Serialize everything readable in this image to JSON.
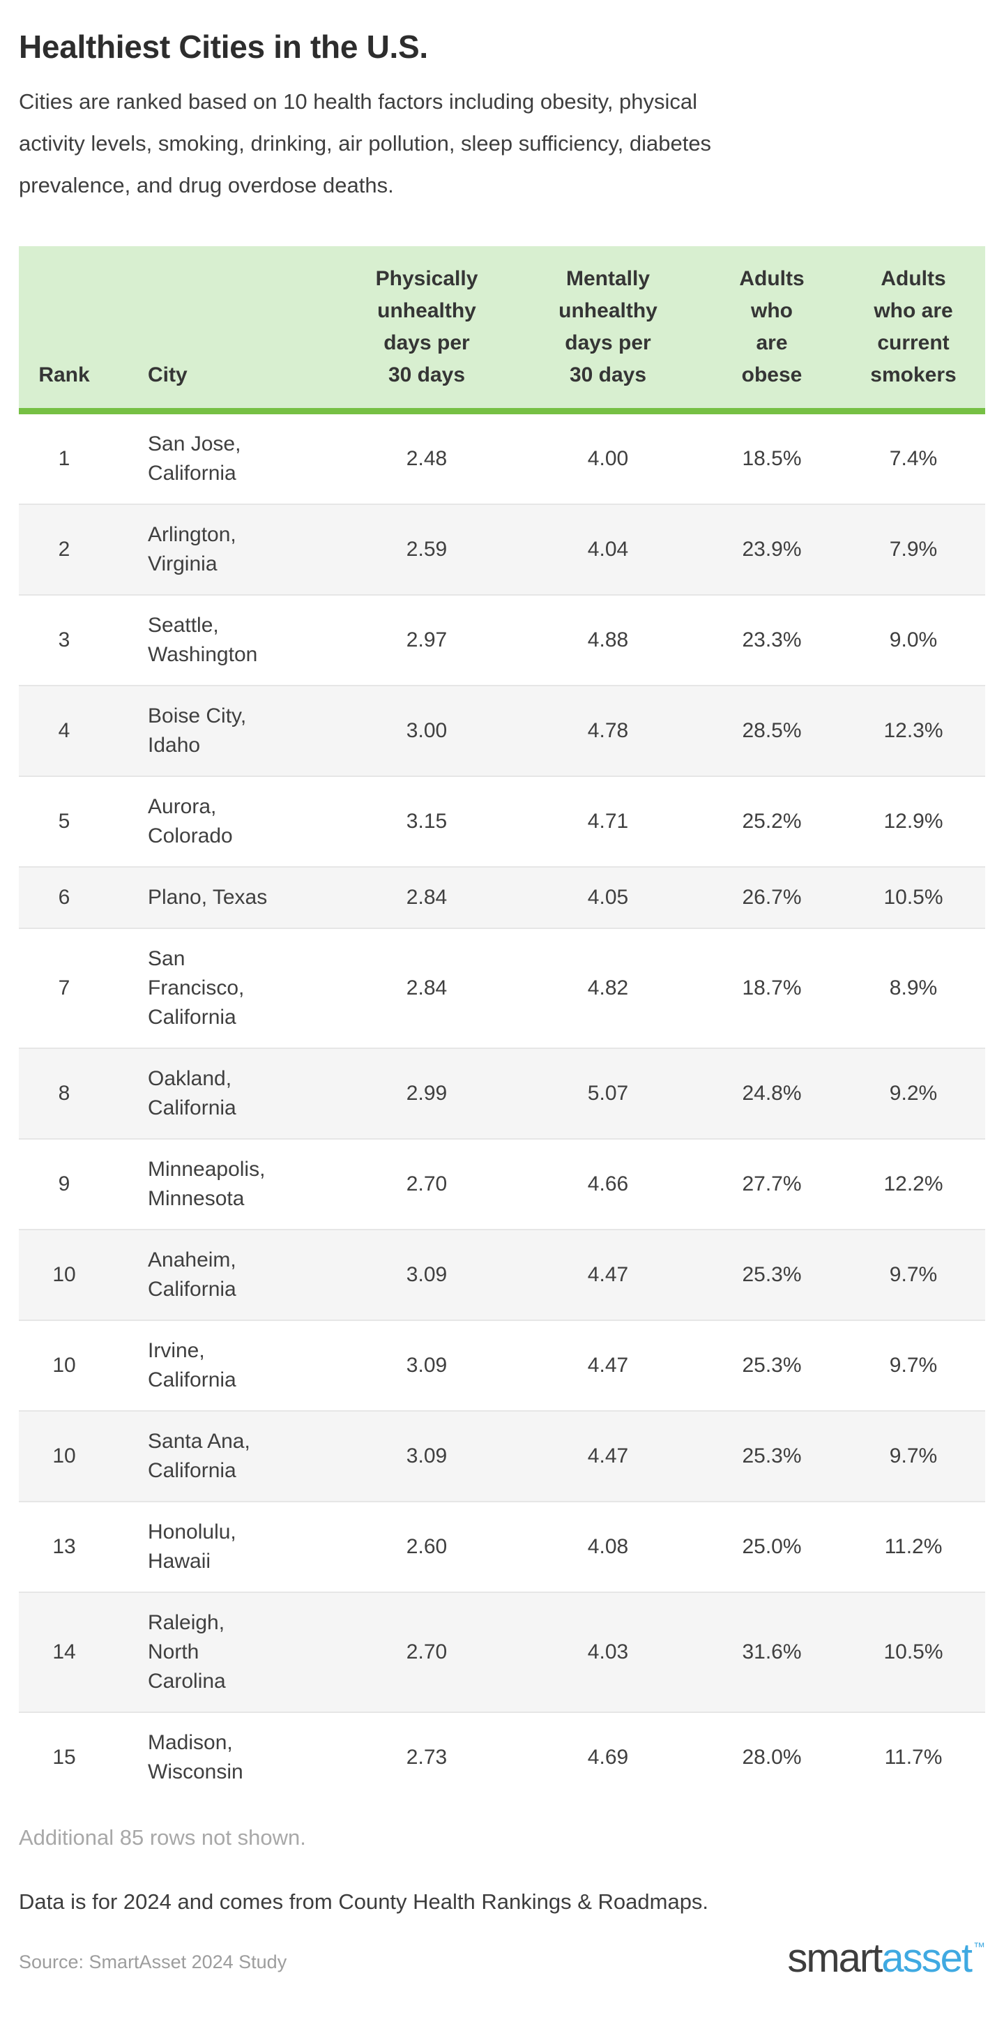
{
  "page": {
    "title": "Healthiest Cities in the U.S.",
    "subtitle": "Cities are ranked based on 10 health factors including obesity, physical\nactivity levels, smoking, drinking, air pollution, sleep sufficiency, diabetes\nprevalence, and drug overdose deaths.",
    "additional_note": "Additional 85 rows not shown.",
    "data_note": "Data is for 2024 and comes from County Health Rankings & Roadmaps.",
    "source_note": "Source: SmartAsset 2024 Study",
    "logo": {
      "part1": "smart",
      "part2": "asset",
      "tm": "™"
    }
  },
  "colors": {
    "header_bg": "#d8efd0",
    "header_border": "#76c044",
    "row_stripe": "#f5f5f5",
    "row_divider": "#e6e6e6",
    "logo_blue": "#3fa9e1"
  },
  "chart_data": {
    "type": "table",
    "title": "Healthiest Cities in the U.S.",
    "columns": [
      "Rank",
      "City",
      "Physically unhealthy days per 30 days",
      "Mentally unhealthy days per 30 days",
      "Adults who are obese",
      "Adults who are current smokers"
    ],
    "header_display": [
      "Rank",
      "City",
      "Physically\nunhealthy\ndays per\n30 days",
      "Mentally\nunhealthy\ndays per\n30 days",
      "Adults\nwho\nare\nobese",
      "Adults\nwho are\ncurrent\nsmokers"
    ],
    "rows": [
      {
        "rank": "1",
        "city": "San Jose,\nCalifornia",
        "physically_unhealthy_days": "2.48",
        "mentally_unhealthy_days": "4.00",
        "adults_obese": "18.5%",
        "adults_smokers": "7.4%"
      },
      {
        "rank": "2",
        "city": "Arlington,\nVirginia",
        "physically_unhealthy_days": "2.59",
        "mentally_unhealthy_days": "4.04",
        "adults_obese": "23.9%",
        "adults_smokers": "7.9%"
      },
      {
        "rank": "3",
        "city": "Seattle,\nWashington",
        "physically_unhealthy_days": "2.97",
        "mentally_unhealthy_days": "4.88",
        "adults_obese": "23.3%",
        "adults_smokers": "9.0%"
      },
      {
        "rank": "4",
        "city": "Boise City,\nIdaho",
        "physically_unhealthy_days": "3.00",
        "mentally_unhealthy_days": "4.78",
        "adults_obese": "28.5%",
        "adults_smokers": "12.3%"
      },
      {
        "rank": "5",
        "city": "Aurora,\nColorado",
        "physically_unhealthy_days": "3.15",
        "mentally_unhealthy_days": "4.71",
        "adults_obese": "25.2%",
        "adults_smokers": "12.9%"
      },
      {
        "rank": "6",
        "city": "Plano, Texas",
        "physically_unhealthy_days": "2.84",
        "mentally_unhealthy_days": "4.05",
        "adults_obese": "26.7%",
        "adults_smokers": "10.5%"
      },
      {
        "rank": "7",
        "city": "San\nFrancisco,\nCalifornia",
        "physically_unhealthy_days": "2.84",
        "mentally_unhealthy_days": "4.82",
        "adults_obese": "18.7%",
        "adults_smokers": "8.9%"
      },
      {
        "rank": "8",
        "city": "Oakland,\nCalifornia",
        "physically_unhealthy_days": "2.99",
        "mentally_unhealthy_days": "5.07",
        "adults_obese": "24.8%",
        "adults_smokers": "9.2%"
      },
      {
        "rank": "9",
        "city": "Minneapolis,\nMinnesota",
        "physically_unhealthy_days": "2.70",
        "mentally_unhealthy_days": "4.66",
        "adults_obese": "27.7%",
        "adults_smokers": "12.2%"
      },
      {
        "rank": "10",
        "city": "Anaheim,\nCalifornia",
        "physically_unhealthy_days": "3.09",
        "mentally_unhealthy_days": "4.47",
        "adults_obese": "25.3%",
        "adults_smokers": "9.7%"
      },
      {
        "rank": "10",
        "city": "Irvine,\nCalifornia",
        "physically_unhealthy_days": "3.09",
        "mentally_unhealthy_days": "4.47",
        "adults_obese": "25.3%",
        "adults_smokers": "9.7%"
      },
      {
        "rank": "10",
        "city": "Santa Ana,\nCalifornia",
        "physically_unhealthy_days": "3.09",
        "mentally_unhealthy_days": "4.47",
        "adults_obese": "25.3%",
        "adults_smokers": "9.7%"
      },
      {
        "rank": "13",
        "city": "Honolulu,\nHawaii",
        "physically_unhealthy_days": "2.60",
        "mentally_unhealthy_days": "4.08",
        "adults_obese": "25.0%",
        "adults_smokers": "11.2%"
      },
      {
        "rank": "14",
        "city": "Raleigh,\nNorth\nCarolina",
        "physically_unhealthy_days": "2.70",
        "mentally_unhealthy_days": "4.03",
        "adults_obese": "31.6%",
        "adults_smokers": "10.5%"
      },
      {
        "rank": "15",
        "city": "Madison,\nWisconsin",
        "physically_unhealthy_days": "2.73",
        "mentally_unhealthy_days": "4.69",
        "adults_obese": "28.0%",
        "adults_smokers": "11.7%"
      }
    ]
  }
}
